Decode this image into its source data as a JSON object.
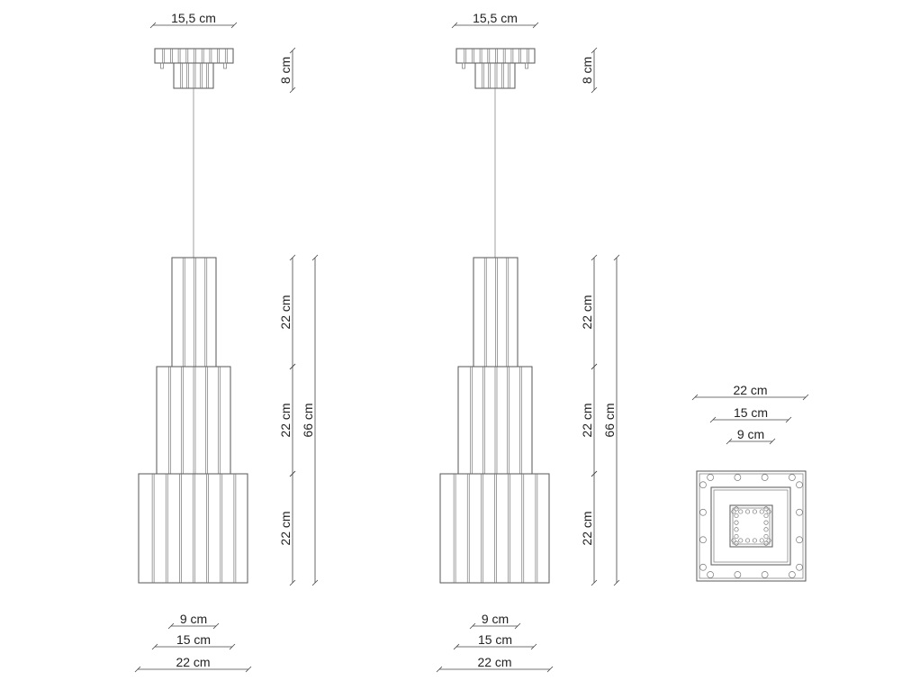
{
  "views": [
    {
      "id": "front-view-1",
      "canopy_width": "15,5 cm",
      "canopy_height": "8 cm",
      "tier_heights": [
        "22 cm",
        "22 cm",
        "22 cm"
      ],
      "total_height": "66 cm",
      "tier_widths": [
        "9 cm",
        "15 cm",
        "22 cm"
      ]
    },
    {
      "id": "front-view-2",
      "canopy_width": "15,5 cm",
      "canopy_height": "8 cm",
      "tier_heights": [
        "22 cm",
        "22 cm",
        "22 cm"
      ],
      "total_height": "66 cm",
      "tier_widths": [
        "9 cm",
        "15 cm",
        "22 cm"
      ]
    }
  ],
  "top_view": {
    "widths": [
      "22 cm",
      "15 cm",
      "9 cm"
    ]
  },
  "colors": {
    "line": "#555555",
    "text": "#222222"
  }
}
